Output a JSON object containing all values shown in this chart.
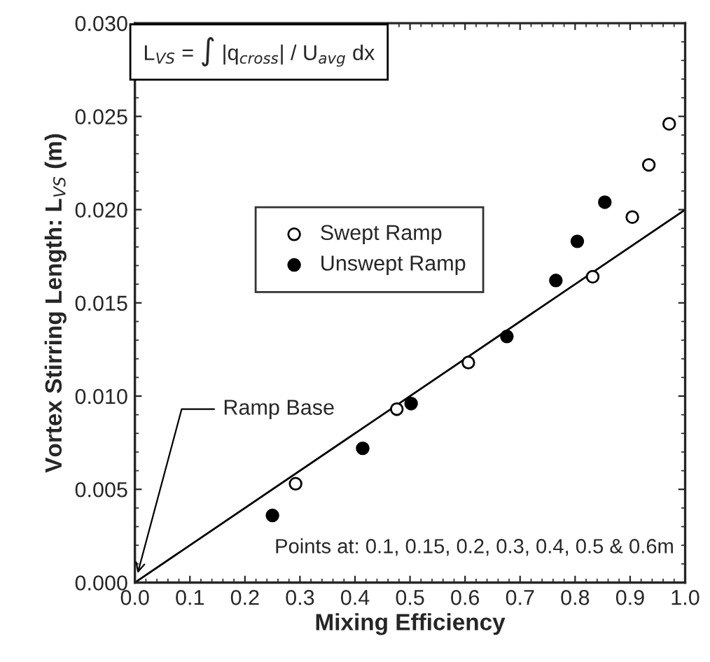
{
  "chart_data": {
    "type": "scatter",
    "xlabel": "Mixing Efficiency",
    "ylabel": "Vortex Stirring Length: L$_{VS}$ (m)",
    "series": [
      {
        "name": "Swept Ramp",
        "color": "#000000",
        "x": [
          0.292,
          0.476,
          0.606,
          0.832,
          0.904,
          0.934,
          0.971
        ],
        "values": [
          0.0053,
          0.0093,
          0.0118,
          0.0164,
          0.0196,
          0.0224,
          0.0246
        ]
      },
      {
        "name": "Unswept Ramp",
        "color": "#000000",
        "x": [
          0.25,
          0.414,
          0.502,
          0.676,
          0.765,
          0.804,
          0.854
        ],
        "values": [
          0.0036,
          0.0072,
          0.0096,
          0.0132,
          0.0162,
          0.0183,
          0.0204
        ]
      },
      {
        "type": "line",
        "marker": "none",
        "color": "#000000",
        "x": [
          0.0,
          1.0
        ],
        "values": [
          0.0,
          0.02
        ]
      }
    ],
    "xlim": [
      0.0,
      1.0
    ],
    "ylim": [
      0.0,
      0.03
    ],
    "xticks": [
      {
        "value": 0.0,
        "label": "0.0"
      },
      0.1,
      0.2,
      0.3,
      0.4,
      0.5,
      0.6,
      0.7,
      0.8,
      0.9,
      {
        "value": 1.0,
        "label": "1.0"
      }
    ],
    "yticks": [
      {
        "value": 0.0,
        "label": "0.000"
      },
      0.005,
      {
        "value": 0.01,
        "label": "0.010"
      },
      0.015,
      {
        "value": 0.02,
        "label": "0.020"
      },
      0.025,
      {
        "value": 0.03,
        "label": "0.030"
      }
    ],
    "annotations": [
      "L$_{VS}$ = ∫ |q$_{cross}$| / U$_{avg}$ dx",
      {
        "text": "Ramp Base",
        "x": 0.005,
        "y": 0.0005
      },
      "Points at: 0.1, 0.15, 0.2, 0.3, 0.4, 0.5 & 0.6m"
    ],
    "legend": "upper left",
    "marker": "circle",
    "grid": false
  }
}
